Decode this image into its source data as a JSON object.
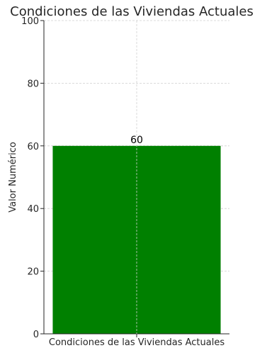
{
  "chart_data": {
    "type": "bar",
    "title": "Condiciones de las Viviendas Actuales",
    "xlabel": "",
    "ylabel": "Valor Numérico",
    "categories": [
      "Condiciones de las Viviendas Actuales"
    ],
    "values": [
      60
    ],
    "data_labels": [
      "60"
    ],
    "ylim": [
      0,
      100
    ],
    "yticks": [
      0,
      20,
      40,
      60,
      80,
      100
    ],
    "grid": true,
    "bar_color": "#008000",
    "legend": "none"
  }
}
